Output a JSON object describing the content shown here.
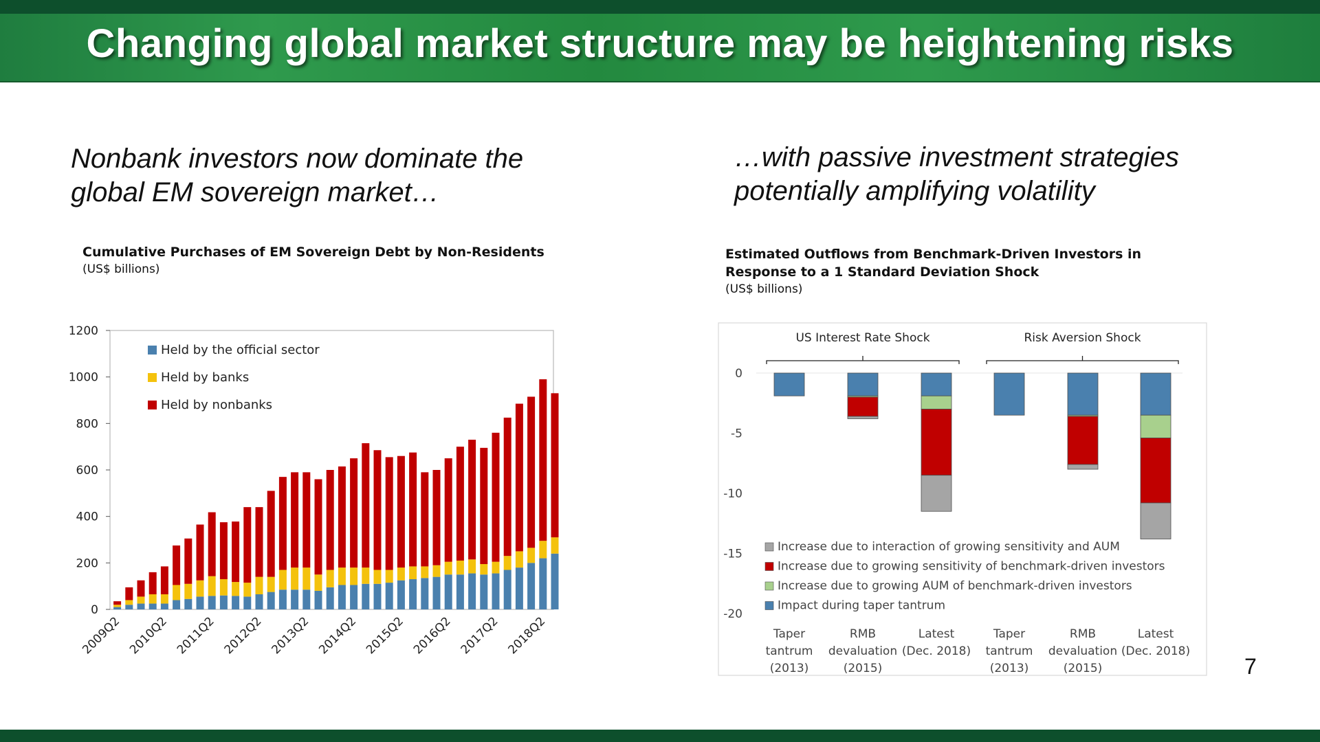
{
  "slide": {
    "title": "Changing global market structure may be heightening risks",
    "left_subheading": "Nonbank investors now dominate the global EM sovereign market…",
    "right_subheading": "…with passive investment strategies potentially amplifying volatility",
    "page_number": "7"
  },
  "colors": {
    "official": "#4a80ae",
    "banks": "#f4c20d",
    "nonbanks": "#c00000",
    "taper": "#4a80ae",
    "aum": "#a8d08d",
    "sensitivity": "#c00000",
    "interaction": "#a5a5a5"
  },
  "chart_data": [
    {
      "type": "bar",
      "stacked": true,
      "title": "Cumulative Purchases of EM Sovereign Debt by Non-Residents",
      "unit": "(US$ billions)",
      "xlabel": "",
      "ylabel": "",
      "ylim": [
        0,
        1200
      ],
      "yticks": [
        0,
        200,
        400,
        600,
        800,
        1000,
        1200
      ],
      "legend_position": "top-left",
      "categories": [
        "2009Q2",
        "2009Q3",
        "2009Q4",
        "2010Q1",
        "2010Q2",
        "2010Q3",
        "2010Q4",
        "2011Q1",
        "2011Q2",
        "2011Q3",
        "2011Q4",
        "2012Q1",
        "2012Q2",
        "2012Q3",
        "2012Q4",
        "2013Q1",
        "2013Q2",
        "2013Q3",
        "2013Q4",
        "2014Q1",
        "2014Q2",
        "2014Q3",
        "2014Q4",
        "2015Q1",
        "2015Q2",
        "2015Q3",
        "2015Q4",
        "2016Q1",
        "2016Q2",
        "2016Q3",
        "2016Q4",
        "2017Q1",
        "2017Q2",
        "2017Q3",
        "2017Q4",
        "2018Q1",
        "2018Q2",
        "2018Q3"
      ],
      "xtick_labels": [
        "2009Q2",
        "2010Q2",
        "2011Q2",
        "2012Q2",
        "2013Q2",
        "2014Q2",
        "2015Q2",
        "2016Q2",
        "2017Q2",
        "2018Q2"
      ],
      "series": [
        {
          "name": "Held by the official sector",
          "color_key": "official",
          "values": [
            10,
            20,
            25,
            25,
            25,
            40,
            45,
            55,
            58,
            60,
            58,
            55,
            65,
            75,
            85,
            85,
            85,
            80,
            95,
            105,
            105,
            110,
            110,
            115,
            125,
            130,
            135,
            140,
            150,
            150,
            155,
            150,
            155,
            170,
            180,
            200,
            220,
            240
          ]
        },
        {
          "name": "Held by banks",
          "color_key": "banks",
          "values": [
            10,
            20,
            30,
            40,
            40,
            65,
            65,
            70,
            85,
            70,
            60,
            60,
            75,
            65,
            85,
            95,
            95,
            70,
            75,
            75,
            75,
            70,
            60,
            55,
            55,
            55,
            50,
            50,
            55,
            60,
            60,
            45,
            50,
            60,
            70,
            65,
            75,
            70
          ]
        },
        {
          "name": "Held by nonbanks",
          "color_key": "nonbanks",
          "values": [
            15,
            55,
            70,
            95,
            120,
            170,
            195,
            240,
            275,
            245,
            260,
            325,
            300,
            370,
            400,
            410,
            410,
            410,
            430,
            435,
            470,
            535,
            515,
            485,
            480,
            490,
            405,
            410,
            445,
            490,
            515,
            500,
            555,
            595,
            635,
            650,
            695,
            620
          ]
        }
      ]
    },
    {
      "type": "bar",
      "stacked": true,
      "title": "Estimated Outflows from Benchmark-Driven Investors in Response to a 1 Standard Deviation Shock",
      "unit": "(US$ billions)",
      "ylim": [
        -20,
        0
      ],
      "yticks": [
        0,
        -5,
        -10,
        -15,
        -20
      ],
      "legend_position": "bottom-left",
      "groups": [
        {
          "label": "US Interest Rate Shock",
          "start": 0,
          "end": 2
        },
        {
          "label": "Risk Aversion Shock",
          "start": 3,
          "end": 5
        }
      ],
      "categories": [
        [
          "Taper",
          "tantrum",
          "(2013)"
        ],
        [
          "RMB",
          "devaluation",
          "(2015)"
        ],
        [
          "Latest",
          "(Dec. 2018)"
        ],
        [
          "Taper",
          "tantrum",
          "(2013)"
        ],
        [
          "RMB",
          "devaluation",
          "(2015)"
        ],
        [
          "Latest",
          "(Dec. 2018)"
        ]
      ],
      "series": [
        {
          "name": "Impact during taper tantrum",
          "color_key": "taper",
          "values": [
            -1.9,
            -1.9,
            -1.9,
            -3.5,
            -3.5,
            -3.5
          ]
        },
        {
          "name": "Increase due to growing AUM of benchmark-driven investors",
          "color_key": "aum",
          "values": [
            0,
            -0.1,
            -1.1,
            0,
            -0.1,
            -1.9
          ]
        },
        {
          "name": "Increase due to growing sensitivity of benchmark-driven investors",
          "color_key": "sensitivity",
          "values": [
            0,
            -1.6,
            -5.5,
            0,
            -4.0,
            -5.4
          ]
        },
        {
          "name": "Increase due to interaction of growing sensitivity and AUM",
          "color_key": "interaction",
          "values": [
            0,
            -0.2,
            -3.0,
            0,
            -0.4,
            -3.0
          ]
        }
      ],
      "legend_order": [
        "Increase due to interaction of growing sensitivity and AUM",
        "Increase due to growing sensitivity of benchmark-driven investors",
        "Increase due to growing AUM of benchmark-driven investors",
        "Impact during taper tantrum"
      ]
    }
  ]
}
